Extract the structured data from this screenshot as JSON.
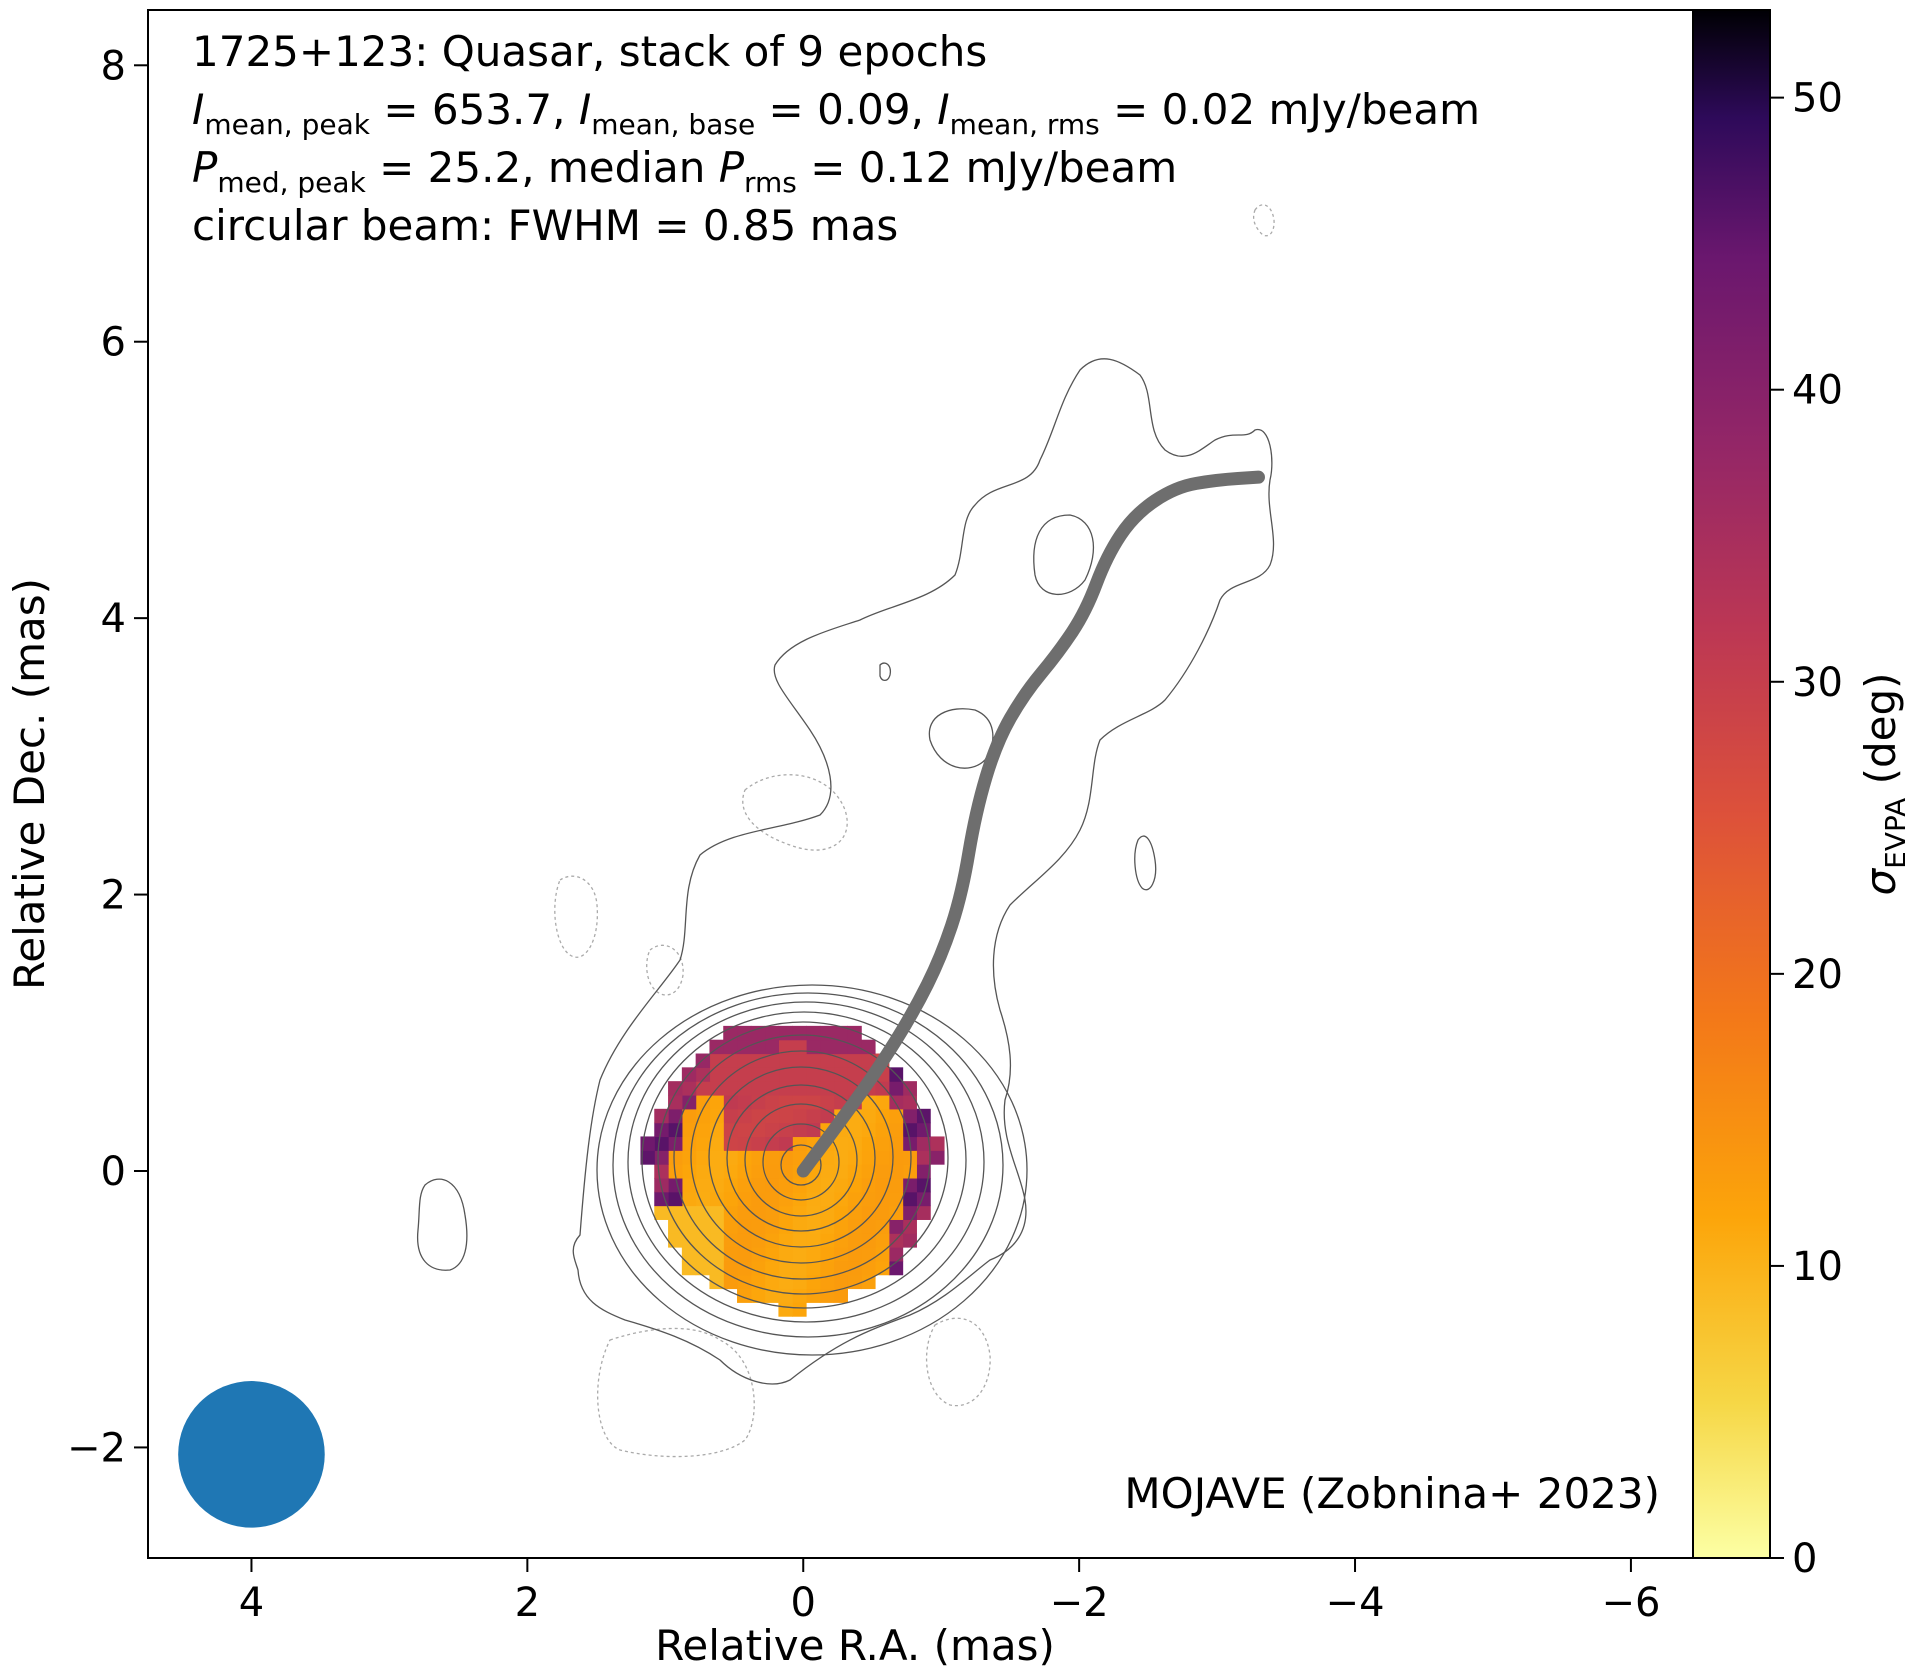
{
  "chart_data": {
    "type": "heatmap",
    "title": "1725+123: Quasar, stack of 9 epochs",
    "annotation_lines": {
      "line2": {
        "pre": "I",
        "sub1": "mean, peak",
        "val1": " = 653.7, ",
        "pre2": "I",
        "sub2": "mean, base",
        "val2": " = 0.09, ",
        "pre3": "I",
        "sub3": "mean, rms",
        "val3": " = 0.02 mJy/beam"
      },
      "line3": {
        "pre": "P",
        "sub1": "med, peak",
        "val1": " = 25.2, median ",
        "pre2": "P",
        "sub2": "rms",
        "val2": " = 0.12 mJy/beam"
      },
      "line4": "circular beam: FWHM = 0.85 mas"
    },
    "credit": "MOJAVE (Zobnina+ 2023)",
    "xlabel": "Relative R.A. (mas)",
    "ylabel": "Relative Dec. (mas)",
    "xlim": [
      4.75,
      -6.45
    ],
    "ylim": [
      -2.8,
      8.4
    ],
    "x_ticks": [
      4,
      2,
      0,
      -2,
      -4,
      -6
    ],
    "x_tick_labels": [
      "4",
      "2",
      "0",
      "−2",
      "−4",
      "−6"
    ],
    "y_ticks": [
      -2,
      0,
      2,
      4,
      6,
      8
    ],
    "y_tick_labels": [
      "−2",
      "0",
      "2",
      "4",
      "6",
      "8"
    ],
    "colorbar": {
      "label_symbol": "σ",
      "label_sub": "EVPA",
      "label_unit": " (deg)",
      "range": [
        0,
        53
      ],
      "ticks": [
        0,
        10,
        20,
        30,
        40,
        50
      ],
      "tick_labels": [
        "0",
        "10",
        "20",
        "30",
        "40",
        "50"
      ],
      "colormap": "inferno_r"
    },
    "beam": {
      "x": 4.0,
      "y": -2.05,
      "fwhm": 0.85,
      "color": "#1f77b4"
    },
    "ridgeline": {
      "color": "#6e6e6e",
      "points": [
        [
          0,
          0
        ],
        [
          -0.3,
          0.4
        ],
        [
          -0.55,
          0.75
        ],
        [
          -0.8,
          1.15
        ],
        [
          -1.0,
          1.55
        ],
        [
          -1.15,
          2.0
        ],
        [
          -1.25,
          2.6
        ],
        [
          -1.4,
          3.1
        ],
        [
          -1.6,
          3.45
        ],
        [
          -1.85,
          3.75
        ],
        [
          -2.05,
          4.05
        ],
        [
          -2.2,
          4.45
        ],
        [
          -2.4,
          4.75
        ],
        [
          -2.7,
          4.95
        ],
        [
          -3.0,
          5.0
        ],
        [
          -3.3,
          5.02
        ]
      ]
    },
    "evpa_regions": [
      {
        "name": "core",
        "center": [
          0.08,
          0.05
        ],
        "radius": 1.05,
        "sigma": 12
      },
      {
        "name": "north-east band",
        "sigma": 30
      },
      {
        "name": "rim",
        "sigma": 40
      }
    ],
    "contour_levels_relative": [
      0.0003,
      0.0006,
      0.0012,
      0.0025,
      0.005,
      0.01,
      0.02,
      0.04,
      0.08,
      0.16,
      0.32,
      0.64
    ]
  },
  "colors": {
    "contour": "#555555",
    "negative_contour": "#aaaaaa",
    "ridgeline": "#6e6e6e",
    "beam": "#1f77b4"
  }
}
